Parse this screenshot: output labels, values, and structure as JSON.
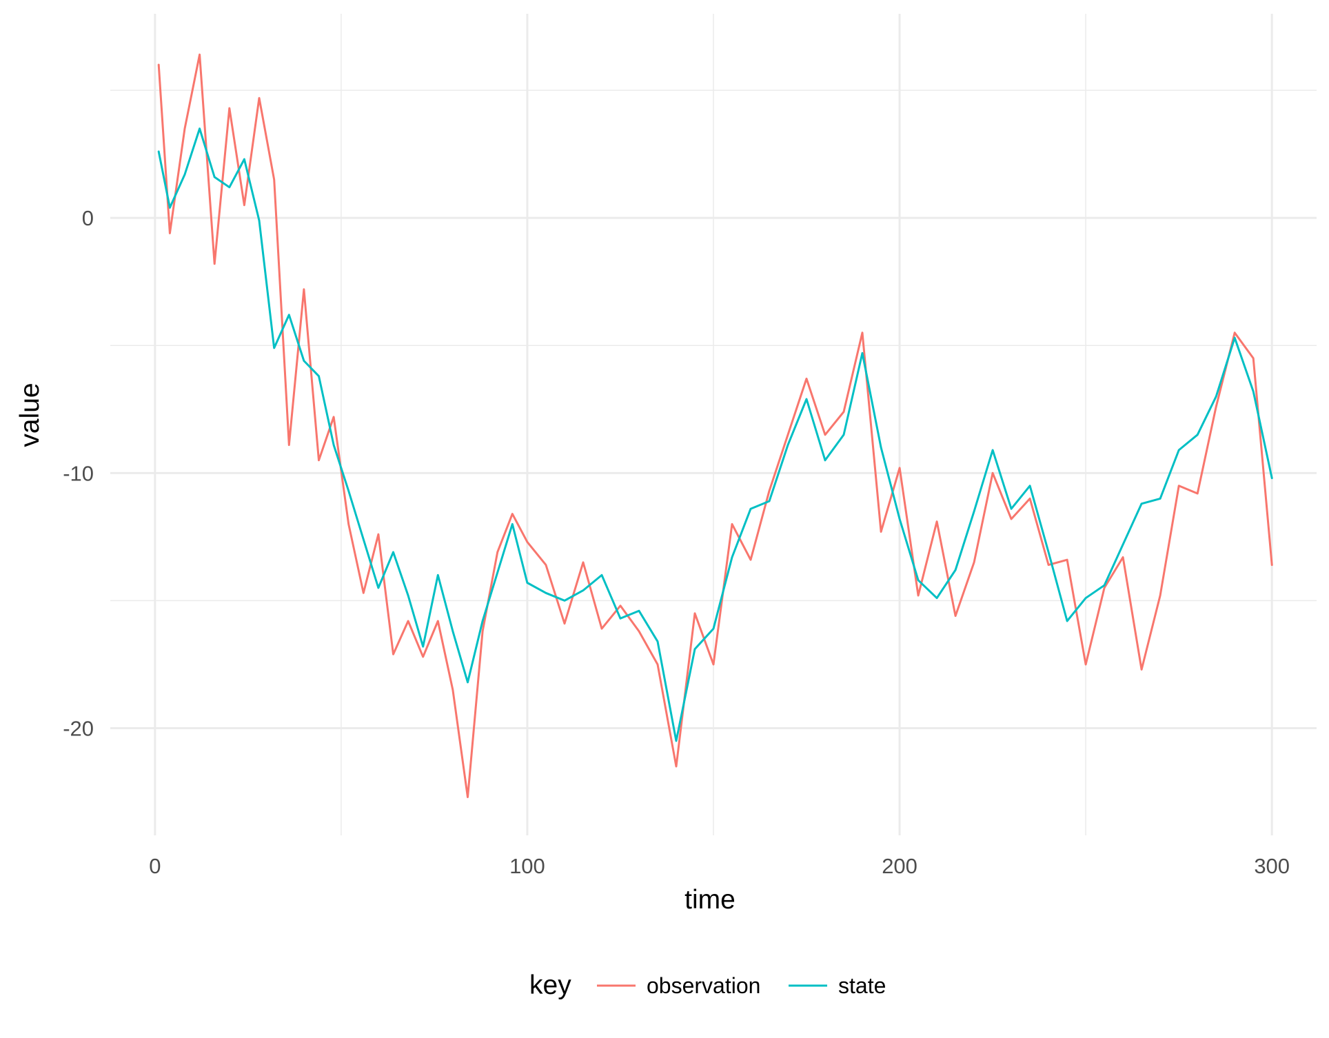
{
  "chart_data": {
    "type": "line",
    "xlabel": "time",
    "ylabel": "value",
    "xlim": [
      -12,
      312
    ],
    "ylim": [
      -24.2,
      8.0
    ],
    "x_ticks": [
      0,
      100,
      200,
      300
    ],
    "x_tick_labels": [
      "0",
      "100",
      "200",
      "300"
    ],
    "y_ticks": [
      -20,
      -10,
      0
    ],
    "y_tick_labels": [
      "-20",
      "-10",
      "0"
    ],
    "grid": true,
    "legend": {
      "position": "bottom",
      "title": "key",
      "entries": [
        "observation",
        "state"
      ]
    },
    "series": [
      {
        "name": "observation",
        "color": "#F8766D",
        "x": [
          1,
          4,
          8,
          12,
          16,
          20,
          24,
          28,
          32,
          36,
          40,
          44,
          48,
          52,
          56,
          60,
          64,
          68,
          72,
          76,
          80,
          84,
          88,
          92,
          96,
          100,
          105,
          110,
          115,
          120,
          125,
          130,
          135,
          140,
          145,
          150,
          155,
          160,
          165,
          170,
          175,
          180,
          185,
          190,
          195,
          200,
          205,
          210,
          215,
          220,
          225,
          230,
          235,
          240,
          245,
          250,
          255,
          260,
          265,
          270,
          275,
          280,
          285,
          290,
          295,
          300
        ],
        "y": [
          6.0,
          -0.6,
          3.5,
          6.4,
          -1.8,
          4.3,
          0.5,
          4.7,
          1.5,
          -8.9,
          -2.8,
          -9.5,
          -7.8,
          -12.0,
          -14.7,
          -12.4,
          -17.1,
          -15.8,
          -17.2,
          -15.8,
          -18.5,
          -22.7,
          -16.2,
          -13.1,
          -11.6,
          -12.7,
          -13.6,
          -15.9,
          -13.5,
          -16.1,
          -15.2,
          -16.2,
          -17.5,
          -21.5,
          -15.5,
          -17.5,
          -12.0,
          -13.4,
          -10.7,
          -8.5,
          -6.3,
          -8.5,
          -7.6,
          -4.5,
          -12.3,
          -9.8,
          -14.8,
          -11.9,
          -15.6,
          -13.5,
          -10.0,
          -11.8,
          -11.0,
          -13.6,
          -13.4,
          -17.5,
          -14.5,
          -13.3,
          -17.7,
          -14.8,
          -10.5,
          -10.8,
          -7.4,
          -4.5,
          -5.5,
          -13.6
        ]
      },
      {
        "name": "state",
        "color": "#00BFC4",
        "x": [
          1,
          4,
          8,
          12,
          16,
          20,
          24,
          28,
          32,
          36,
          40,
          44,
          48,
          52,
          56,
          60,
          64,
          68,
          72,
          76,
          80,
          84,
          88,
          92,
          96,
          100,
          105,
          110,
          115,
          120,
          125,
          130,
          135,
          140,
          145,
          150,
          155,
          160,
          165,
          170,
          175,
          180,
          185,
          190,
          195,
          200,
          205,
          210,
          215,
          220,
          225,
          230,
          235,
          240,
          245,
          250,
          255,
          260,
          265,
          270,
          275,
          280,
          285,
          290,
          295,
          300
        ],
        "y": [
          2.6,
          0.4,
          1.7,
          3.5,
          1.6,
          1.2,
          2.3,
          -0.1,
          -5.1,
          -3.8,
          -5.6,
          -6.2,
          -8.9,
          -10.7,
          -12.6,
          -14.5,
          -13.1,
          -14.8,
          -16.8,
          -14.0,
          -16.2,
          -18.2,
          -15.8,
          -13.9,
          -12.0,
          -14.3,
          -14.7,
          -15.0,
          -14.6,
          -14.0,
          -15.7,
          -15.4,
          -16.6,
          -20.5,
          -16.9,
          -16.1,
          -13.3,
          -11.4,
          -11.1,
          -8.9,
          -7.1,
          -9.5,
          -8.5,
          -5.3,
          -9.0,
          -11.8,
          -14.2,
          -14.9,
          -13.8,
          -11.5,
          -9.1,
          -11.4,
          -10.5,
          -13.1,
          -15.8,
          -14.9,
          -14.4,
          -12.8,
          -11.2,
          -11.0,
          -9.1,
          -8.5,
          -7.0,
          -4.7,
          -6.8,
          -10.2
        ]
      }
    ]
  }
}
